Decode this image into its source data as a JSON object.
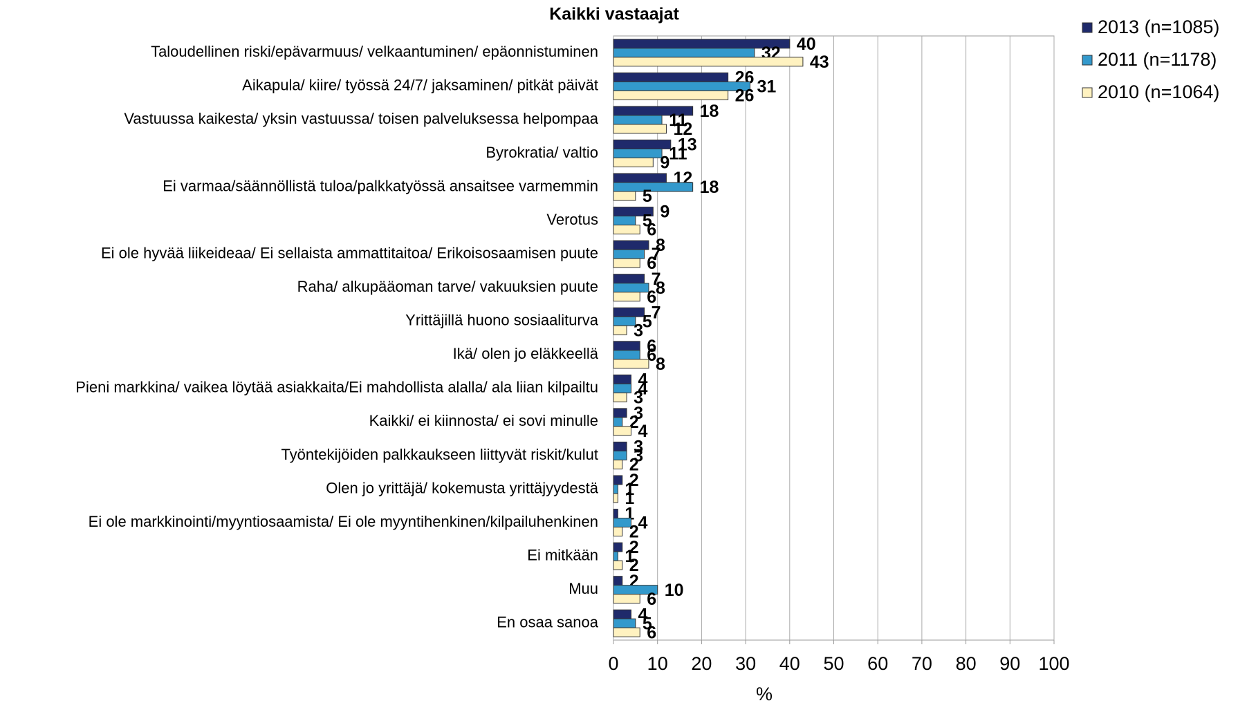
{
  "chart_data": {
    "type": "barh",
    "title": "Kaikki vastaajat",
    "x_label": "%",
    "categories": [
      "Taloudellinen riski/epävarmuus/ velkaantuminen/ epäonnistuminen",
      "Aikapula/ kiire/ työssä 24/7/ jaksaminen/ pitkät päivät",
      "Vastuussa kaikesta/ yksin vastuussa/ toisen palveluksessa helpompaa",
      "Byrokratia/ valtio",
      "Ei varmaa/säännöllistä tuloa/palkkatyössä ansaitsee varmemmin",
      "Verotus",
      "Ei ole hyvää liikeideaa/ Ei sellaista ammattitaitoa/ Erikoisosaamisen puute",
      "Raha/ alkupääoman tarve/ vakuuksien puute",
      "Yrittäjillä huono sosiaaliturva",
      "Ikä/ olen jo eläkkeellä",
      "Pieni markkina/ vaikea löytää asiakkaita/Ei mahdollista alalla/ ala liian kilpailtu",
      "Kaikki/ ei kiinnosta/ ei sovi minulle",
      "Työntekijöiden palkkaukseen liittyvät riskit/kulut",
      "Olen jo yrittäjä/ kokemusta yrittäjyydestä",
      "Ei ole markkinointi/myyntiosaamista/ Ei ole myyntihenkinen/kilpailuhenkinen",
      "Ei mitkään",
      "Muu",
      "En osaa sanoa"
    ],
    "series": [
      {
        "name": "2013 (n=1085)",
        "color": "#1f2a6b",
        "values": [
          40,
          26,
          18,
          13,
          12,
          9,
          8,
          7,
          7,
          6,
          4,
          3,
          3,
          2,
          1,
          2,
          2,
          4
        ]
      },
      {
        "name": "2011 (n=1178)",
        "color": "#3399cc",
        "values": [
          32,
          31,
          11,
          11,
          18,
          5,
          7,
          8,
          5,
          6,
          4,
          2,
          3,
          1,
          4,
          1,
          10,
          5
        ]
      },
      {
        "name": "2010 (n=1064)",
        "color": "#fff2c0",
        "values": [
          43,
          26,
          12,
          9,
          5,
          6,
          6,
          6,
          3,
          8,
          3,
          4,
          2,
          1,
          2,
          2,
          6,
          6
        ]
      }
    ],
    "xlim": [
      0,
      100
    ],
    "xticks": [
      0,
      10,
      20,
      30,
      40,
      50,
      60,
      70,
      80,
      90,
      100
    ],
    "grid": true,
    "legend": "right"
  }
}
